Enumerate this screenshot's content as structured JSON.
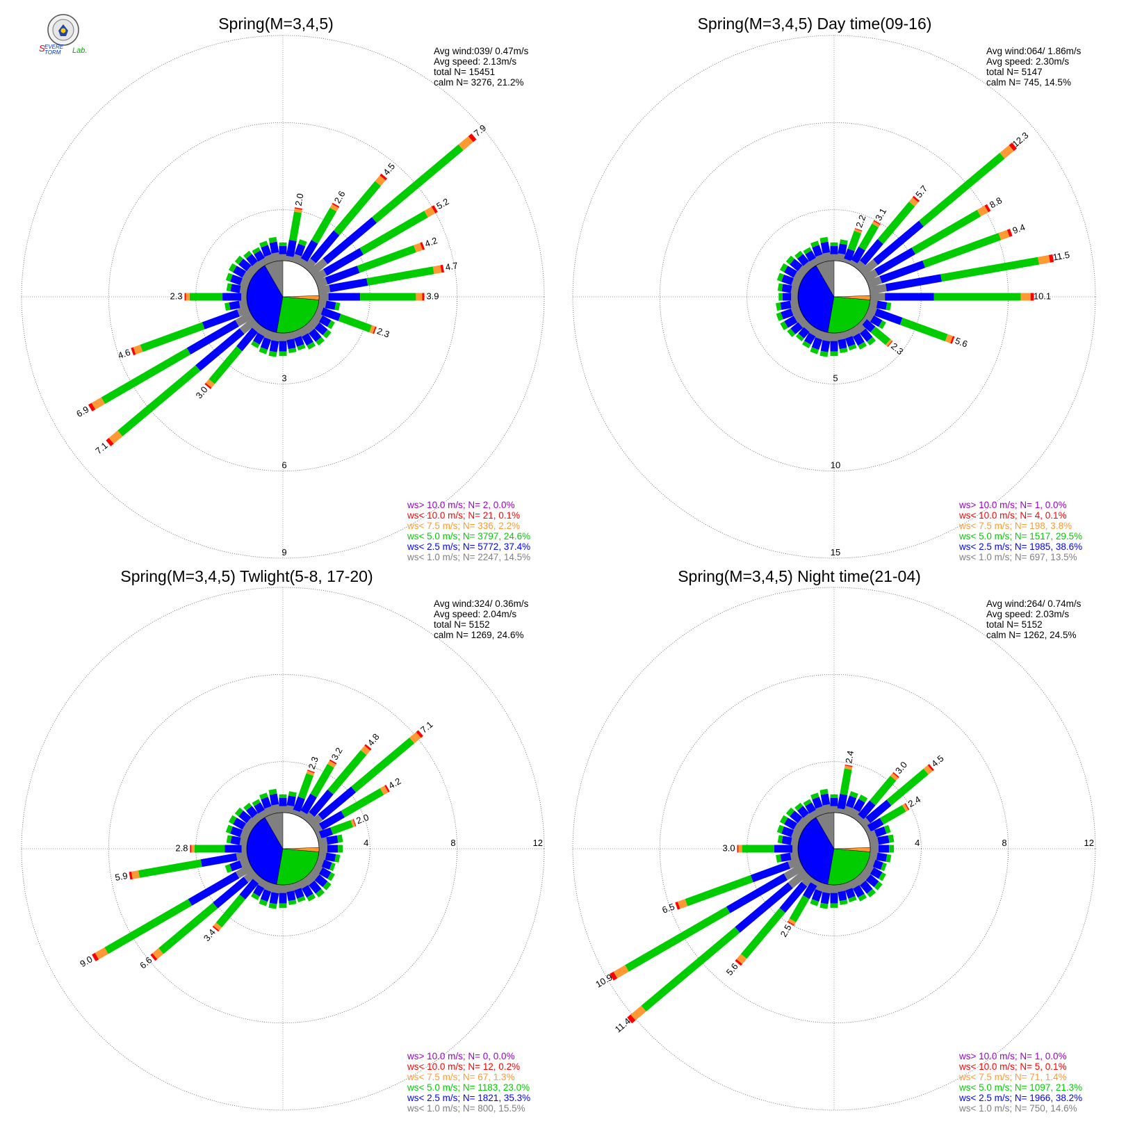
{
  "logo": {
    "text_line1": "SEVERE",
    "text_line2": "STORM",
    "text_lab": "Lab."
  },
  "colors": {
    "ws_gt_10": "#9900cc",
    "ws_lt_10": "#ff0000",
    "ws_lt_7_5": "#ff9933",
    "ws_lt_5": "#00cc00",
    "ws_lt_2_5": "#0000ff",
    "ws_lt_1": "#808080"
  },
  "chart_data": [
    {
      "type": "windrose",
      "title": "Spring(M=3,4,5)",
      "stats": [
        "Avg wind:039/ 0.47m/s",
        "Avg speed: 2.13m/s",
        "total N=      15451",
        "calm N=   3276,  21.2%"
      ],
      "ring_labels": [
        "3",
        "6",
        "9"
      ],
      "ring_label_side": "bottom",
      "rmax": 9,
      "labeled_bars": [
        {
          "dir": 10,
          "value": "2.0"
        },
        {
          "dir": 30,
          "value": "2.6"
        },
        {
          "dir": 40,
          "value": "4.5"
        },
        {
          "dir": 50,
          "value": "7.9"
        },
        {
          "dir": 60,
          "value": "5.2"
        },
        {
          "dir": 70,
          "value": "4.2"
        },
        {
          "dir": 80,
          "value": "4.7"
        },
        {
          "dir": 90,
          "value": "3.9"
        },
        {
          "dir": 110,
          "value": "2.3"
        },
        {
          "dir": 220,
          "value": "3.0"
        },
        {
          "dir": 230,
          "value": "7.1"
        },
        {
          "dir": 240,
          "value": "6.9"
        },
        {
          "dir": 250,
          "value": "4.6"
        },
        {
          "dir": 270,
          "value": "2.3"
        }
      ],
      "legend": [
        "ws> 10.0 m/s; N=     2,  0.0%",
        "ws< 10.0 m/s; N=    21,  0.1%",
        "ws<  7.5 m/s; N=   336,  2.2%",
        "ws<  5.0 m/s; N=  3797, 24.6%",
        "ws<  2.5 m/s; N=  5772, 37.4%",
        "ws<  1.0 m/s; N=  2247, 14.5%"
      ]
    },
    {
      "type": "windrose",
      "title": "Spring(M=3,4,5) Day time(09-16)",
      "stats": [
        "Avg wind:064/ 1.86m/s",
        "Avg speed: 2.30m/s",
        "total N=       5147",
        "calm N=    745,  14.5%"
      ],
      "ring_labels": [
        "5",
        "10",
        "15"
      ],
      "ring_label_side": "bottom",
      "rmax": 15,
      "labeled_bars": [
        {
          "dir": 20,
          "value": "2.2"
        },
        {
          "dir": 30,
          "value": "3.1"
        },
        {
          "dir": 40,
          "value": "5.7"
        },
        {
          "dir": 50,
          "value": "12.3"
        },
        {
          "dir": 60,
          "value": "8.8"
        },
        {
          "dir": 70,
          "value": "9.4"
        },
        {
          "dir": 80,
          "value": "11.5"
        },
        {
          "dir": 90,
          "value": "10.1"
        },
        {
          "dir": 110,
          "value": "5.6"
        },
        {
          "dir": 130,
          "value": "2.3"
        }
      ],
      "legend": [
        "ws> 10.0 m/s; N=     1,  0.0%",
        "ws< 10.0 m/s; N=     4,  0.1%",
        "ws<  7.5 m/s; N=   198,  3.8%",
        "ws<  5.0 m/s; N=  1517, 29.5%",
        "ws<  2.5 m/s; N=  1985, 38.6%",
        "ws<  1.0 m/s; N=   697, 13.5%"
      ]
    },
    {
      "type": "windrose",
      "title": "Spring(M=3,4,5) Twlight(5-8, 17-20)",
      "stats": [
        "Avg wind:324/ 0.36m/s",
        "Avg speed: 2.04m/s",
        "total N=       5152",
        "calm N=   1269,  24.6%"
      ],
      "ring_labels": [
        "4",
        "8",
        "12"
      ],
      "ring_label_side": "right",
      "rmax": 12,
      "labeled_bars": [
        {
          "dir": 20,
          "value": "2.3"
        },
        {
          "dir": 30,
          "value": "3.2"
        },
        {
          "dir": 40,
          "value": "4.8"
        },
        {
          "dir": 50,
          "value": "7.1"
        },
        {
          "dir": 60,
          "value": "4.2"
        },
        {
          "dir": 70,
          "value": "2.0"
        },
        {
          "dir": 220,
          "value": "3.4"
        },
        {
          "dir": 230,
          "value": "6.6"
        },
        {
          "dir": 240,
          "value": "9.0"
        },
        {
          "dir": 260,
          "value": "5.9"
        },
        {
          "dir": 270,
          "value": "2.8"
        }
      ],
      "legend": [
        "ws> 10.0 m/s; N=     0,  0.0%",
        "ws< 10.0 m/s; N=    12,  0.2%",
        "ws<  7.5 m/s; N=    67,  1.3%",
        "ws<  5.0 m/s; N=  1183, 23.0%",
        "ws<  2.5 m/s; N=  1821, 35.3%",
        "ws<  1.0 m/s; N=   800, 15.5%"
      ]
    },
    {
      "type": "windrose",
      "title": "Spring(M=3,4,5) Night time(21-04)",
      "stats": [
        "Avg wind:264/ 0.74m/s",
        "Avg speed: 2.03m/s",
        "total N=       5152",
        "calm N=   1262,  24.5%"
      ],
      "ring_labels": [
        "4",
        "8",
        "12"
      ],
      "ring_label_side": "right",
      "rmax": 12,
      "labeled_bars": [
        {
          "dir": 10,
          "value": "2.4"
        },
        {
          "dir": 40,
          "value": "3.0"
        },
        {
          "dir": 50,
          "value": "4.5"
        },
        {
          "dir": 60,
          "value": "2.4"
        },
        {
          "dir": 210,
          "value": "2.5"
        },
        {
          "dir": 220,
          "value": "5.6"
        },
        {
          "dir": 230,
          "value": "11.4"
        },
        {
          "dir": 240,
          "value": "10.9"
        },
        {
          "dir": 250,
          "value": "6.5"
        },
        {
          "dir": 270,
          "value": "3.0"
        }
      ],
      "legend": [
        "ws> 10.0 m/s; N=     1,  0.0%",
        "ws< 10.0 m/s; N=     5,  0.1%",
        "ws<  7.5 m/s; N=    71,  1.4%",
        "ws<  5.0 m/s; N=  1097, 21.3%",
        "ws<  2.5 m/s; N=  1966, 38.2%",
        "ws<  1.0 m/s; N=   750, 14.6%"
      ]
    }
  ]
}
